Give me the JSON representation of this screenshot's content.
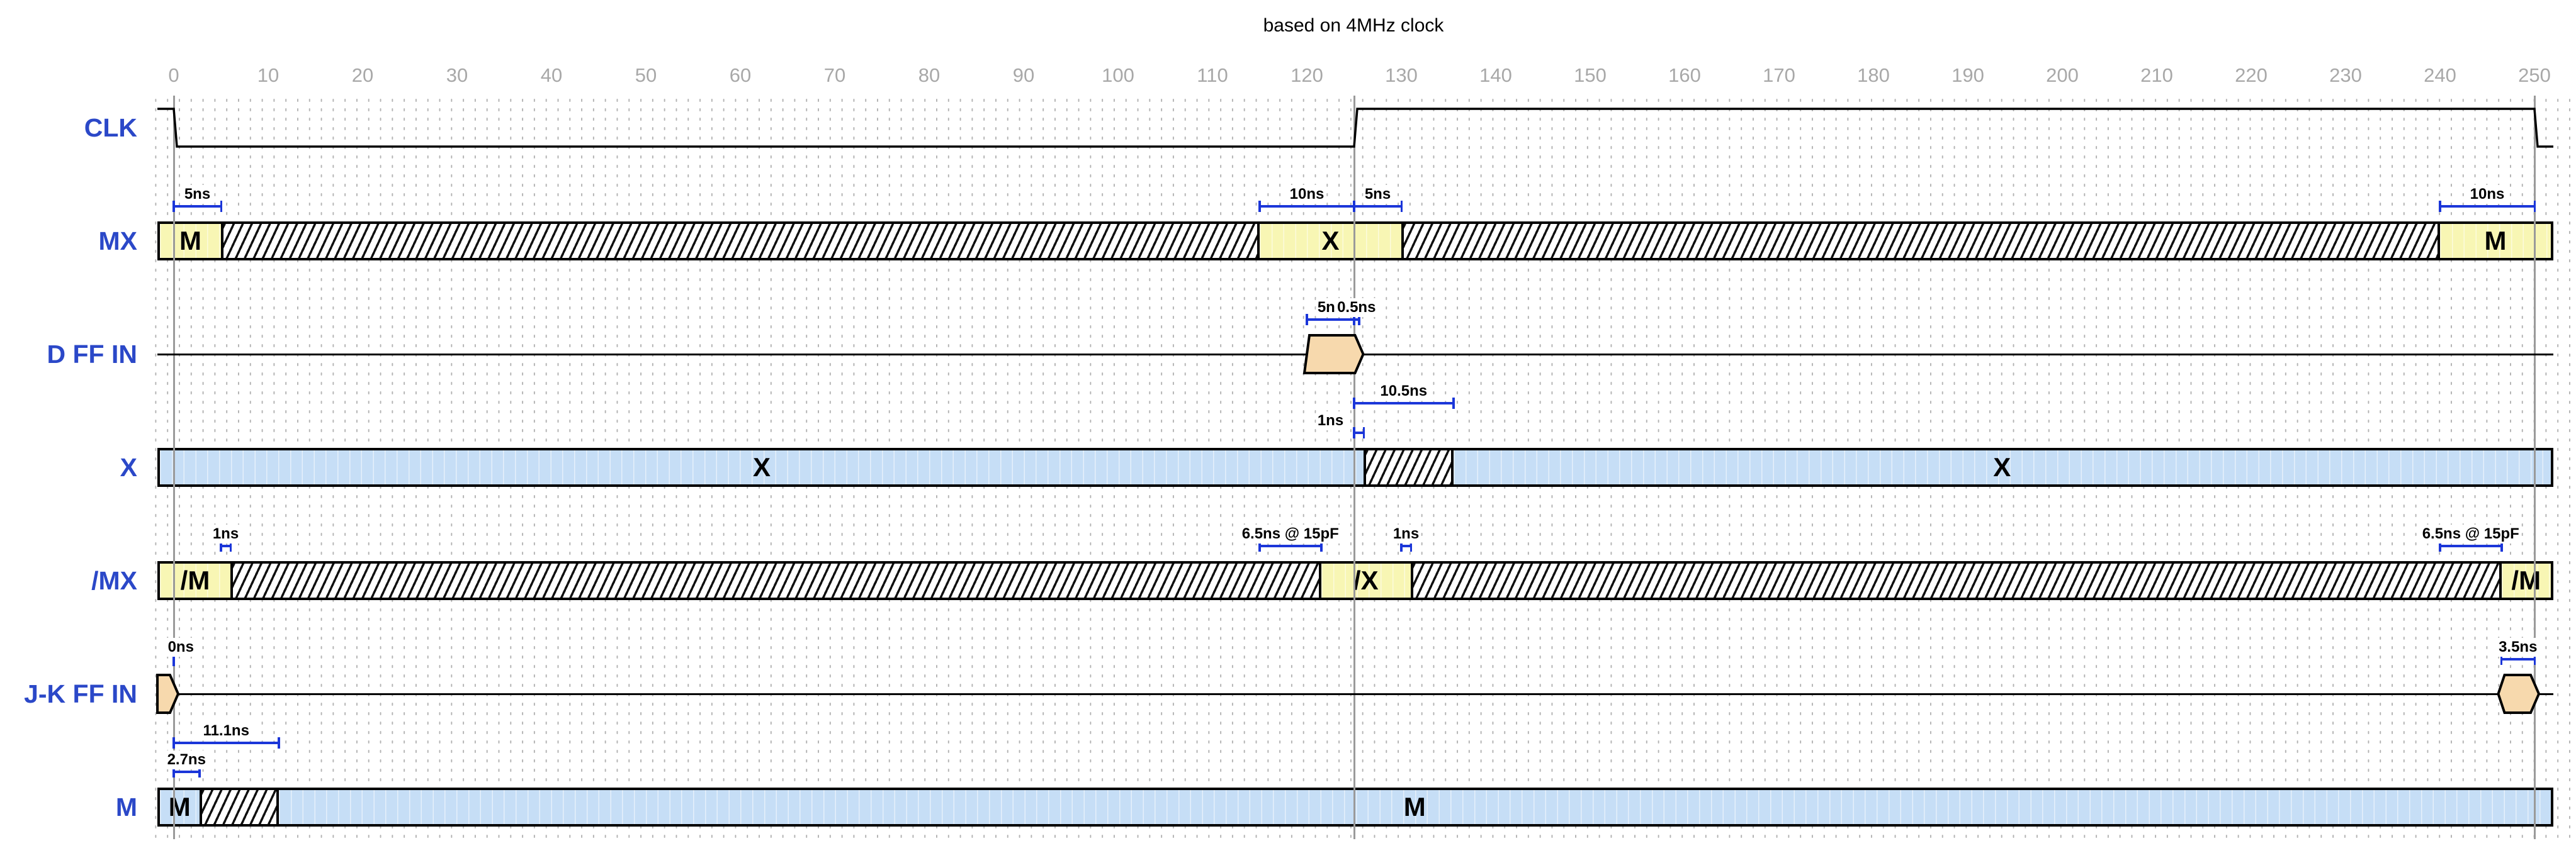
{
  "title": "based on 4MHz clock",
  "axis": {
    "unit": "ns",
    "ticks": [
      0,
      10,
      20,
      30,
      40,
      50,
      60,
      70,
      80,
      90,
      100,
      110,
      120,
      130,
      140,
      150,
      160,
      170,
      180,
      190,
      200,
      210,
      220,
      230,
      240,
      250
    ]
  },
  "markers_ns": [
    0,
    125,
    250
  ],
  "colors": {
    "row_label_blue": "#2b48c8",
    "measure_blue": "#1b36d9",
    "bus_yellow": "#f8f6b4",
    "bus_blue": "#c6def6",
    "pulse_tan": "#f7d9ad",
    "axis_gray": "#a8a8a8",
    "marker_gray": "#9a9a9a",
    "waveform_black": "#000000"
  },
  "rows": [
    {
      "name": "CLK",
      "type": "clock",
      "t_end": 252,
      "wave_levels": [
        {
          "t": -1.73,
          "level": 1
        },
        {
          "t": 0,
          "level": 0
        },
        {
          "t": 125,
          "level": 1
        },
        {
          "t": 250,
          "level": 0
        }
      ],
      "annotations": []
    },
    {
      "name": "MX",
      "type": "bus",
      "style": "yellow",
      "segments": [
        {
          "kind": "value",
          "label": "M",
          "t0": -1.73,
          "t1": 5
        },
        {
          "kind": "unknown",
          "t0": 5,
          "t1": 115
        },
        {
          "kind": "value",
          "label": "X",
          "t0": 115,
          "t1": 130
        },
        {
          "kind": "unknown",
          "t0": 130,
          "t1": 240
        },
        {
          "kind": "value",
          "label": "M",
          "t0": 240,
          "t1": 252
        }
      ],
      "annotations": [
        {
          "t0": 0,
          "t1": 5,
          "label": "5ns",
          "pos": "above"
        },
        {
          "t0": 115,
          "t1": 125,
          "label": "10ns",
          "pos": "above"
        },
        {
          "t0": 125,
          "t1": 130,
          "label": "5ns",
          "pos": "above"
        },
        {
          "t0": 240,
          "t1": 250,
          "label": "10ns",
          "pos": "above"
        }
      ]
    },
    {
      "name": "D FF IN",
      "type": "line",
      "pulses": [
        {
          "t0": 120,
          "t1": 125.5,
          "left": "slant",
          "right": "point"
        }
      ],
      "annotations": [
        {
          "t0": 120,
          "t1": 125,
          "label": "5ns",
          "pos": "above"
        },
        {
          "t0": 125,
          "t1": 125.5,
          "label": "0.5ns",
          "pos": "above"
        },
        {
          "t0": 125,
          "t1": 135.5,
          "label": "10.5ns",
          "pos": "below1"
        }
      ]
    },
    {
      "name": "X",
      "type": "bus",
      "style": "blue",
      "segments": [
        {
          "kind": "value",
          "label": "X",
          "t0": -1.73,
          "t1": 126
        },
        {
          "kind": "unknown",
          "t0": 126,
          "t1": 135.5
        },
        {
          "kind": "value",
          "label": "X",
          "t0": 135.5,
          "t1": 252
        }
      ],
      "annotations": [
        {
          "t0": 125,
          "t1": 126,
          "label": "1ns",
          "pos": "above",
          "label_t": 122.5
        }
      ]
    },
    {
      "name": "/MX",
      "type": "bus",
      "style": "yellow",
      "segments": [
        {
          "kind": "value",
          "label": "/M",
          "t0": -1.73,
          "t1": 6
        },
        {
          "kind": "unknown",
          "t0": 6,
          "t1": 121.5
        },
        {
          "kind": "value",
          "label": "/X",
          "t0": 121.5,
          "t1": 131
        },
        {
          "kind": "unknown",
          "t0": 131,
          "t1": 246.5
        },
        {
          "kind": "value",
          "label": "/M",
          "t0": 246.5,
          "t1": 252
        }
      ],
      "annotations": [
        {
          "t0": 5,
          "t1": 6,
          "label": "1ns",
          "pos": "above"
        },
        {
          "t0": 115,
          "t1": 121.5,
          "label": "6.5ns @ 15pF",
          "pos": "above"
        },
        {
          "t0": 130,
          "t1": 131,
          "label": "1ns",
          "pos": "above"
        },
        {
          "t0": 240,
          "t1": 246.5,
          "label": "6.5ns @ 15pF",
          "pos": "above"
        }
      ]
    },
    {
      "name": "J-K FF IN",
      "type": "line",
      "pulses": [
        {
          "t0": -1.73,
          "t1": 0,
          "left": "flat",
          "right": "point"
        },
        {
          "t0": 246.5,
          "t1": 250,
          "left": "point",
          "right": "point"
        }
      ],
      "annotations": [
        {
          "t0": 0,
          "t1": 0,
          "label": "0ns",
          "pos": "above",
          "label_t": 0.75
        },
        {
          "t0": 246.5,
          "t1": 250,
          "label": "3.5ns",
          "pos": "above"
        },
        {
          "t0": 0,
          "t1": 11.1,
          "label": "11.1ns",
          "pos": "below1"
        },
        {
          "t0": 0,
          "t1": 2.7,
          "label": "2.7ns",
          "pos": "below2"
        }
      ]
    },
    {
      "name": "M",
      "type": "bus",
      "style": "blue",
      "segments": [
        {
          "kind": "value",
          "label": "M",
          "t0": -1.73,
          "t1": 2.7
        },
        {
          "kind": "unknown",
          "t0": 2.7,
          "t1": 11.1
        },
        {
          "kind": "value",
          "label": "M",
          "t0": 11.1,
          "t1": 252
        }
      ],
      "annotations": []
    }
  ]
}
